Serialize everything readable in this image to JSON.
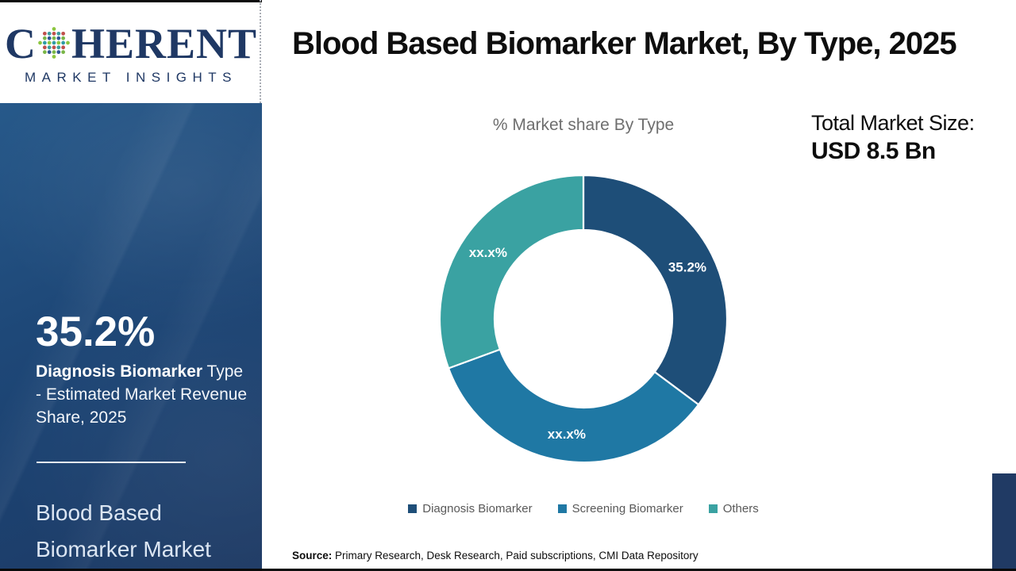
{
  "brand": {
    "name_first_letter": "C",
    "name_rest": "HERENT",
    "subtitle": "MARKET INSIGHTS",
    "navy": "#1f3864",
    "globe_icon": "dotted-globe-icon",
    "globe_palette": [
      "#7ab648",
      "#2e9ca6",
      "#c0504d",
      "#2f5496",
      "#8cc63f",
      "#3a9d9f"
    ]
  },
  "header": {
    "title": "Blood Based Biomarker Market, By Type, 2025"
  },
  "sidebar": {
    "stat_value": "35.2%",
    "stat_label_bold": "Diagnosis Biomarker",
    "stat_label_rest": " Type - Estimated Market Revenue Share, 2025",
    "market_name": "Blood Based Biomarker Market",
    "bg_color": "#1d4674"
  },
  "chart": {
    "subtitle": "% Market share By Type",
    "total_label": "Total Market Size:",
    "total_value": "USD 8.5 Bn"
  },
  "chart_data": {
    "type": "pie",
    "subtype": "donut",
    "title": "% Market share By Type",
    "start_angle_deg": 0,
    "clockwise": true,
    "outer_radius_px": 181,
    "inner_radius_px": 112,
    "segment_gap_color": "#ffffff",
    "legend_position": "bottom",
    "total_market_size": "USD 8.5 Bn",
    "segments": [
      {
        "label": "Diagnosis Biomarker",
        "display": "35.2%",
        "value": 35.2,
        "color": "#1e4e78"
      },
      {
        "label": "Screening Biomarker",
        "display": "xx.x%",
        "value": 34.2,
        "color": "#1f78a4"
      },
      {
        "label": "Others",
        "display": "xx.x%",
        "value": 30.6,
        "color": "#3aa2a2"
      }
    ]
  },
  "source": {
    "label": "Source:",
    "text": " Primary Research, Desk Research, Paid subscriptions, CMI Data Repository"
  }
}
